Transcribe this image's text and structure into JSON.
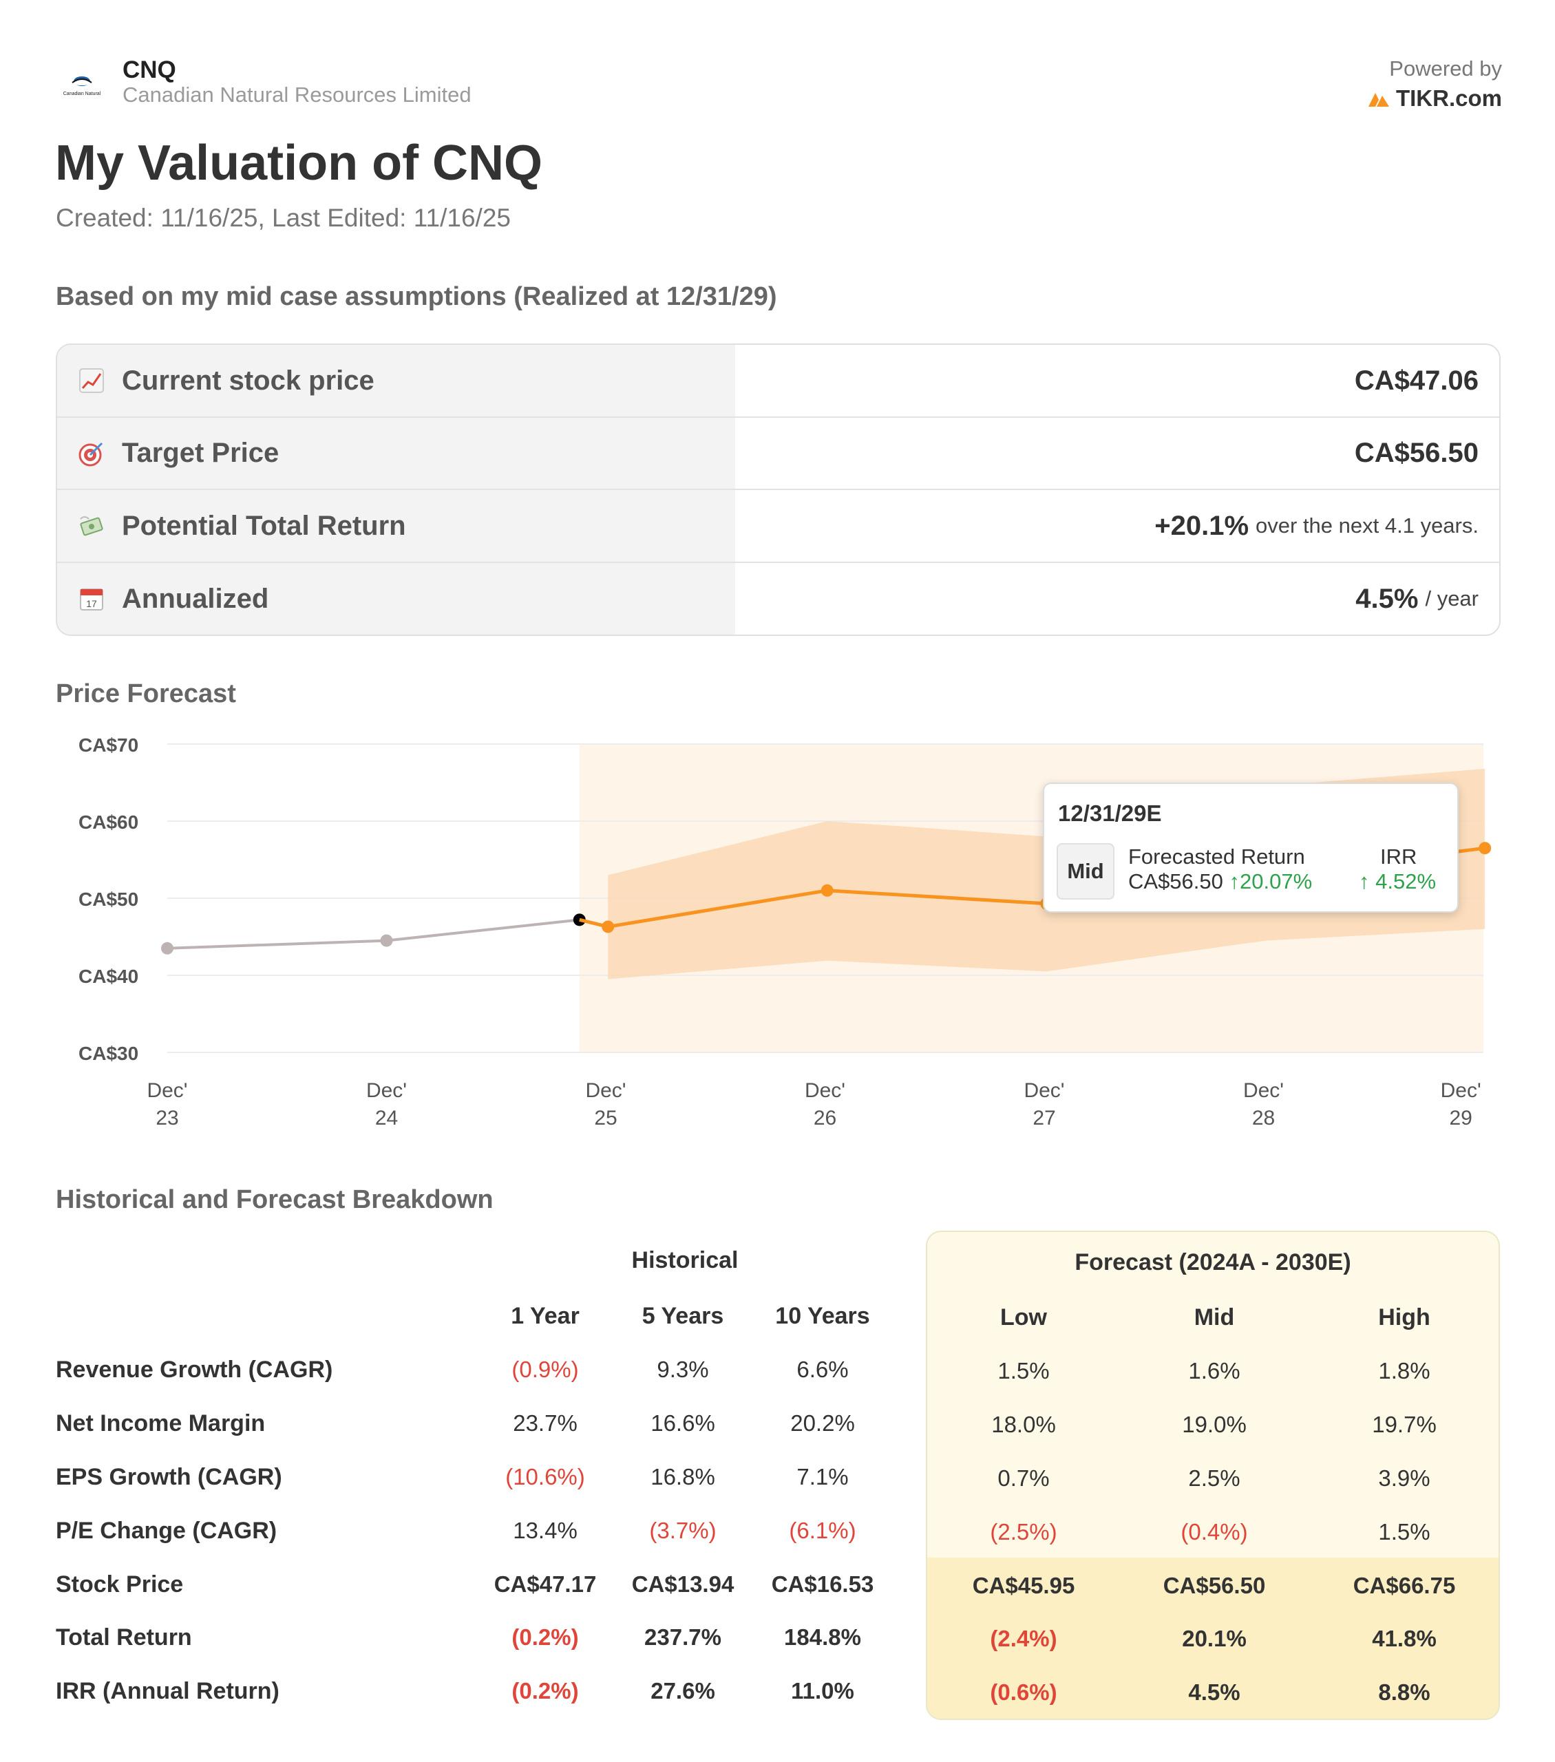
{
  "header": {
    "ticker": "CNQ",
    "company_name": "Canadian Natural Resources Limited",
    "logo_text": "Canadian Natural",
    "powered_by": "Powered by",
    "brand": "TIKR.com"
  },
  "title": "My Valuation of CNQ",
  "created": "Created: 11/16/25, Last Edited: 11/16/25",
  "assumptions_heading": "Based on my mid case assumptions (Realized at 12/31/29)",
  "summary": {
    "rows": [
      {
        "icon": "chart-increasing-icon",
        "label": "Current stock price",
        "value": "CA$47.06",
        "suffix": ""
      },
      {
        "icon": "target-icon",
        "label": "Target Price",
        "value": "CA$56.50",
        "suffix": ""
      },
      {
        "icon": "money-flying-icon",
        "label": "Potential Total Return",
        "value": "+20.1%",
        "suffix": "over the next 4.1 years."
      },
      {
        "icon": "calendar-icon",
        "label": "Annualized",
        "value": "4.5%",
        "suffix": "/ year"
      }
    ]
  },
  "price_forecast_heading": "Price Forecast",
  "chart_data": {
    "type": "line",
    "title": "Price Forecast",
    "y_tick_labels": [
      "CA$70",
      "CA$60",
      "CA$50",
      "CA$40",
      "CA$30"
    ],
    "y_ticks": [
      70,
      60,
      50,
      40,
      30
    ],
    "ylim": [
      30,
      70
    ],
    "x_tick_labels": [
      [
        "Dec'",
        "23"
      ],
      [
        "Dec'",
        "24"
      ],
      [
        "Dec'",
        "25"
      ],
      [
        "Dec'",
        "26"
      ],
      [
        "Dec'",
        "27"
      ],
      [
        "Dec'",
        "28"
      ],
      [
        "Dec'",
        "29"
      ]
    ],
    "x_ticks": [
      2023.95,
      2024.95,
      2025.95,
      2026.95,
      2027.95,
      2028.95,
      2029.85
    ],
    "forecast_start": 2025.83,
    "series": [
      {
        "kind": "historical",
        "color": "#bdb3b3",
        "x": [
          2023.95,
          2024.95,
          2025.83
        ],
        "y": [
          43.5,
          44.5,
          47.2
        ]
      },
      {
        "kind": "mid_forecast",
        "color": "#f7931e",
        "x": [
          2025.83,
          2025.96,
          2026.96,
          2027.96,
          2029.96
        ],
        "y": [
          47.2,
          46.3,
          51.0,
          49.3,
          56.5
        ]
      }
    ],
    "band": {
      "color": "#fbd7b0",
      "x": [
        2025.96,
        2026.96,
        2027.96,
        2028.96,
        2029.96
      ],
      "low": [
        39.5,
        41.9,
        40.5,
        44.5,
        46.0
      ],
      "high": [
        53.0,
        60.0,
        58.0,
        64.5,
        66.8
      ]
    },
    "tooltip": {
      "date": "12/31/29E",
      "scenario": "Mid",
      "label": "Forecasted Return",
      "price": "CA$56.50",
      "return": "20.07%",
      "irr_label": "IRR",
      "irr": "4.52%",
      "arrow": "↑"
    },
    "colors": {
      "historical": "#bdb3b3",
      "forecast": "#f7931e",
      "band": "#fbd7b0",
      "shade": "#fff4e8",
      "current_point": "#000000"
    }
  },
  "breakdown": {
    "heading": "Historical and Forecast Breakdown",
    "historical_title": "Historical",
    "forecast_title": "Forecast (2024A - 2030E)",
    "columns": [
      "1 Year",
      "5 Years",
      "10 Years",
      "Low",
      "Mid",
      "High"
    ],
    "rows": [
      {
        "label": "Revenue Growth (CAGR)",
        "bold": false,
        "values": [
          "(0.9%)",
          "9.3%",
          "6.6%",
          "1.5%",
          "1.6%",
          "1.8%"
        ]
      },
      {
        "label": "Net Income Margin",
        "bold": false,
        "values": [
          "23.7%",
          "16.6%",
          "20.2%",
          "18.0%",
          "19.0%",
          "19.7%"
        ]
      },
      {
        "label": "EPS Growth (CAGR)",
        "bold": false,
        "values": [
          "(10.6%)",
          "16.8%",
          "7.1%",
          "0.7%",
          "2.5%",
          "3.9%"
        ]
      },
      {
        "label": "P/E Change (CAGR)",
        "bold": false,
        "values": [
          "13.4%",
          "(3.7%)",
          "(6.1%)",
          "(2.5%)",
          "(0.4%)",
          "1.5%"
        ]
      },
      {
        "label": "Stock Price",
        "bold": true,
        "values": [
          "CA$47.17",
          "CA$13.94",
          "CA$16.53",
          "CA$45.95",
          "CA$56.50",
          "CA$66.75"
        ]
      },
      {
        "label": "Total Return",
        "bold": true,
        "values": [
          "(0.2%)",
          "237.7%",
          "184.8%",
          "(2.4%)",
          "20.1%",
          "41.8%"
        ]
      },
      {
        "label": "IRR (Annual Return)",
        "bold": true,
        "values": [
          "(0.2%)",
          "27.6%",
          "11.0%",
          "(0.6%)",
          "4.5%",
          "8.8%"
        ]
      }
    ]
  }
}
